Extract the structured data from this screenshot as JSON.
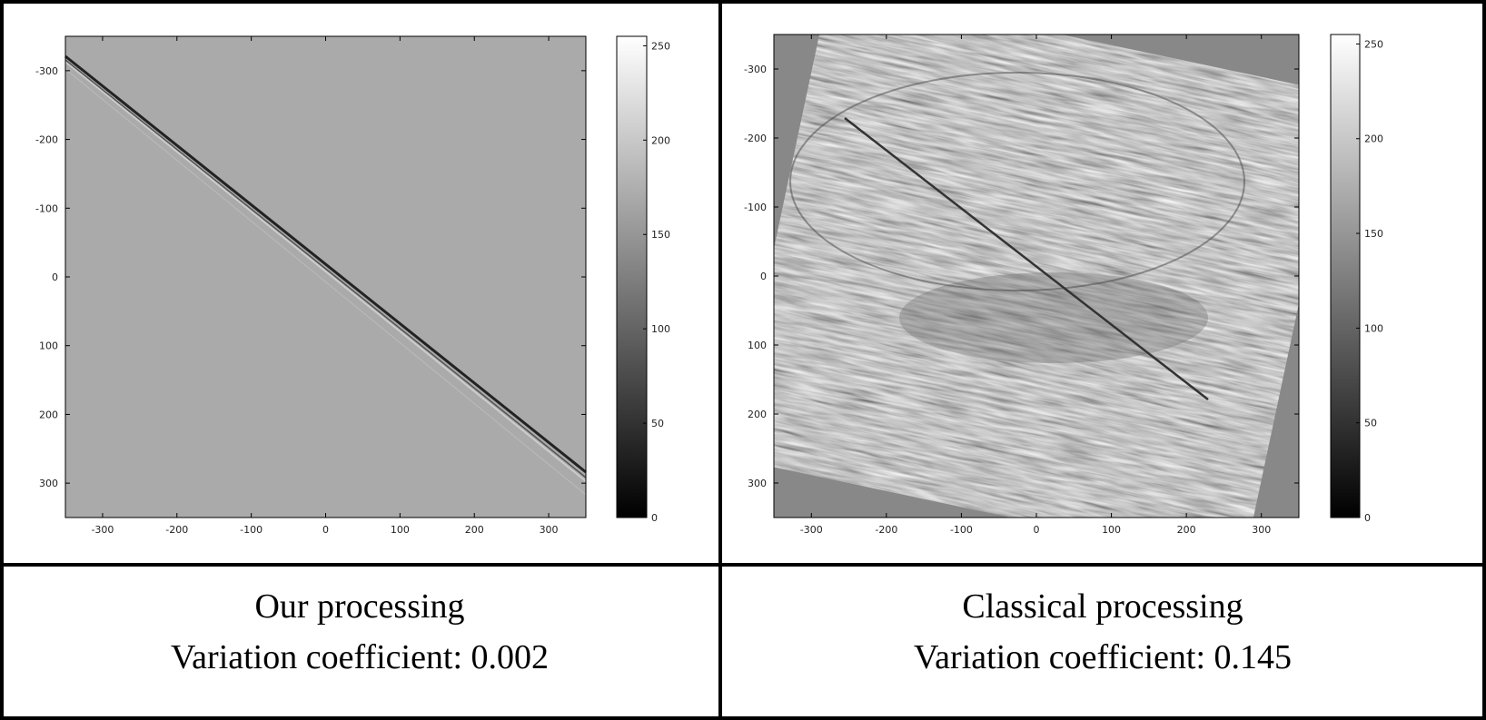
{
  "chart_data": [
    {
      "type": "image",
      "xlim": [
        -350,
        350
      ],
      "ylim": [
        -350,
        350
      ],
      "yaxis_reversed": true,
      "xticks": [
        -300,
        -200,
        -100,
        0,
        100,
        200,
        300
      ],
      "yticks": [
        -300,
        -200,
        -100,
        0,
        100,
        200,
        300
      ],
      "colorbar": {
        "lim": [
          0,
          255
        ],
        "ticks": [
          0,
          50,
          100,
          150,
          200,
          250
        ]
      },
      "caption": [
        "Our processing",
        "Variation coefficient: 0.002"
      ]
    },
    {
      "type": "image",
      "xlim": [
        -350,
        350
      ],
      "ylim": [
        -350,
        350
      ],
      "yaxis_reversed": true,
      "xticks": [
        -300,
        -200,
        -100,
        0,
        100,
        200,
        300
      ],
      "yticks": [
        -300,
        -200,
        -100,
        0,
        100,
        200,
        300
      ],
      "colorbar": {
        "lim": [
          0,
          255
        ],
        "ticks": [
          0,
          50,
          100,
          150,
          200,
          250
        ]
      },
      "caption": [
        "Classical processing",
        "Variation coefficient: 0.145"
      ]
    }
  ]
}
